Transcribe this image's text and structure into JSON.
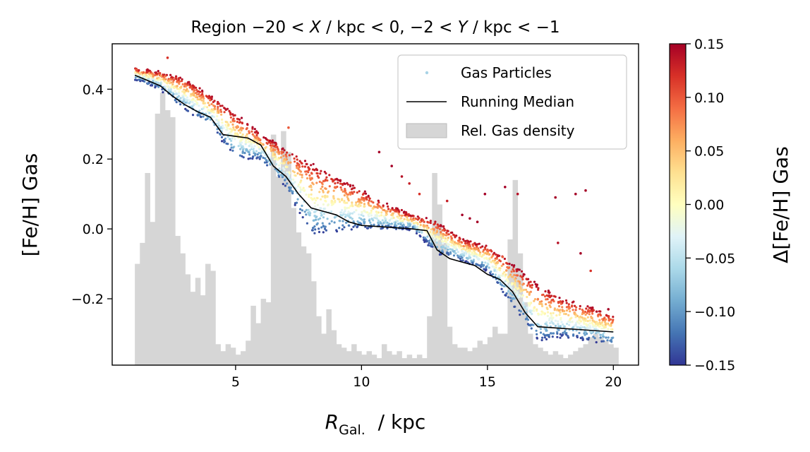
{
  "chart_data": {
    "type": "scatter",
    "title": "Region −20 < X / kpc < 0, −2 < Y / kpc < −1",
    "title_parts": {
      "lead": "Region ",
      "a1": "−20 < ",
      "var1": "X",
      "a2": " / kpc < 0, −2 < ",
      "var2": "Y",
      "a3": " / kpc < −1"
    },
    "xlabel": "R_Gal. / kpc",
    "xlabel_parts": {
      "sym": "R",
      "sub": "Gal.",
      "rest": "  / kpc"
    },
    "ylabel": "[Fe/H] Gas",
    "colorbar_label": "Δ[Fe/H] Gas",
    "xlim": [
      0.1,
      21.0
    ],
    "ylim": [
      -0.39,
      0.53
    ],
    "x_ticks": [
      5,
      10,
      15,
      20
    ],
    "x_tick_labels": [
      "5",
      "10",
      "15",
      "20"
    ],
    "y_ticks": [
      -0.2,
      0.0,
      0.2,
      0.4
    ],
    "y_tick_labels": [
      "−0.2",
      "0.0",
      "0.2",
      "0.4"
    ],
    "colorbar_range": [
      -0.15,
      0.15
    ],
    "colorbar_ticks": [
      -0.15,
      -0.1,
      -0.05,
      0.0,
      0.05,
      0.1,
      0.15
    ],
    "colorbar_tick_labels": [
      "−0.15",
      "−0.10",
      "−0.05",
      "0.00",
      "0.05",
      "0.10",
      "0.15"
    ],
    "colormap": "RdYlBu_r",
    "grid": false,
    "legend_position": "top-right",
    "legend": [
      {
        "label": "Gas Particles",
        "kind": "marker",
        "color": "#a8d3e6"
      },
      {
        "label": "Running Median",
        "kind": "line",
        "color": "#000000"
      },
      {
        "label": "Rel. Gas density",
        "kind": "patch",
        "color": "#d6d6d6"
      }
    ],
    "running_median": {
      "name": "Running Median",
      "x": [
        1.0,
        1.5,
        2.0,
        2.5,
        3.0,
        3.5,
        4.0,
        4.5,
        5.0,
        5.5,
        6.0,
        6.5,
        7.0,
        7.5,
        8.0,
        8.5,
        9.0,
        9.5,
        10.0,
        11.0,
        12.0,
        12.6,
        13.0,
        13.5,
        14.0,
        14.5,
        15.0,
        15.5,
        16.0,
        16.5,
        17.0,
        18.0,
        19.0,
        20.0
      ],
      "y": [
        0.44,
        0.425,
        0.41,
        0.38,
        0.355,
        0.335,
        0.32,
        0.27,
        0.265,
        0.26,
        0.24,
        0.18,
        0.15,
        0.1,
        0.06,
        0.05,
        0.04,
        0.02,
        0.01,
        0.005,
        0.0,
        -0.005,
        -0.06,
        -0.085,
        -0.095,
        -0.105,
        -0.13,
        -0.145,
        -0.18,
        -0.24,
        -0.28,
        -0.285,
        -0.29,
        -0.295
      ]
    },
    "density_bins": {
      "name": "Rel. Gas density",
      "bin_start": 1.0,
      "bin_width": 0.2,
      "y_values": [
        -0.1,
        -0.04,
        0.16,
        0.02,
        0.33,
        0.39,
        0.34,
        0.32,
        -0.02,
        -0.07,
        -0.13,
        -0.18,
        -0.14,
        -0.19,
        -0.1,
        -0.12,
        -0.33,
        -0.35,
        -0.33,
        -0.34,
        -0.36,
        -0.35,
        -0.32,
        -0.22,
        -0.27,
        -0.2,
        -0.21,
        0.27,
        0.15,
        0.28,
        0.22,
        0.06,
        -0.01,
        -0.05,
        -0.07,
        -0.15,
        -0.25,
        -0.3,
        -0.23,
        -0.29,
        -0.33,
        -0.34,
        -0.35,
        -0.33,
        -0.35,
        -0.36,
        -0.35,
        -0.36,
        -0.37,
        -0.33,
        -0.35,
        -0.36,
        -0.35,
        -0.37,
        -0.36,
        -0.37,
        -0.36,
        -0.37,
        -0.25,
        0.16,
        0.07,
        -0.04,
        -0.28,
        -0.33,
        -0.34,
        -0.34,
        -0.35,
        -0.34,
        -0.32,
        -0.33,
        -0.31,
        -0.28,
        -0.3,
        -0.3,
        -0.03,
        0.14,
        -0.07,
        -0.21,
        -0.3,
        -0.33,
        -0.34,
        -0.35,
        -0.36,
        -0.35,
        -0.36,
        -0.37,
        -0.36,
        -0.35,
        -0.34,
        -0.33,
        -0.31,
        -0.3,
        -0.31,
        -0.32,
        -0.33,
        -0.34
      ]
    },
    "gas_particles": {
      "name": "Gas Particles",
      "dfeh_range": [
        -0.15,
        0.15
      ],
      "trend_x": [
        1.0,
        2.0,
        3.0,
        4.0,
        5.0,
        6.0,
        7.0,
        8.0,
        9.0,
        10.0,
        11.0,
        12.0,
        13.0,
        14.0,
        15.0,
        16.0,
        17.0,
        18.0,
        19.0,
        20.0
      ],
      "trend_upper": [
        0.46,
        0.45,
        0.43,
        0.38,
        0.33,
        0.27,
        0.23,
        0.19,
        0.15,
        0.11,
        0.07,
        0.04,
        0.02,
        -0.03,
        -0.05,
        -0.1,
        -0.16,
        -0.2,
        -0.22,
        -0.25
      ],
      "trend_lower": [
        0.43,
        0.4,
        0.34,
        0.3,
        0.2,
        0.2,
        0.12,
        -0.02,
        -0.01,
        0.0,
        0.0,
        0.0,
        -0.07,
        -0.09,
        -0.12,
        -0.22,
        -0.32,
        -0.31,
        -0.32,
        -0.33
      ],
      "outliers": [
        {
          "x": 10.7,
          "y": 0.22,
          "d": 0.15
        },
        {
          "x": 11.2,
          "y": 0.18,
          "d": 0.15
        },
        {
          "x": 11.6,
          "y": 0.15,
          "d": 0.14
        },
        {
          "x": 11.9,
          "y": 0.13,
          "d": 0.13
        },
        {
          "x": 12.3,
          "y": 0.1,
          "d": 0.12
        },
        {
          "x": 13.4,
          "y": 0.08,
          "d": 0.13
        },
        {
          "x": 14.3,
          "y": 0.03,
          "d": 0.15
        },
        {
          "x": 14.6,
          "y": 0.02,
          "d": 0.15
        },
        {
          "x": 14.9,
          "y": 0.1,
          "d": 0.15
        },
        {
          "x": 15.7,
          "y": 0.12,
          "d": 0.15
        },
        {
          "x": 16.2,
          "y": 0.1,
          "d": 0.14
        },
        {
          "x": 17.7,
          "y": 0.09,
          "d": 0.15
        },
        {
          "x": 18.5,
          "y": 0.1,
          "d": 0.15
        },
        {
          "x": 18.9,
          "y": 0.11,
          "d": 0.15
        },
        {
          "x": 18.7,
          "y": -0.07,
          "d": 0.15
        },
        {
          "x": 19.1,
          "y": -0.12,
          "d": 0.12
        },
        {
          "x": 19.8,
          "y": -0.23,
          "d": 0.15
        },
        {
          "x": 17.8,
          "y": -0.04,
          "d": 0.14
        },
        {
          "x": 2.3,
          "y": 0.49,
          "d": 0.12
        },
        {
          "x": 7.1,
          "y": 0.29,
          "d": 0.1
        },
        {
          "x": 15.6,
          "y": -0.08,
          "d": 0.1
        },
        {
          "x": 14.0,
          "y": 0.04,
          "d": 0.15
        }
      ]
    }
  }
}
